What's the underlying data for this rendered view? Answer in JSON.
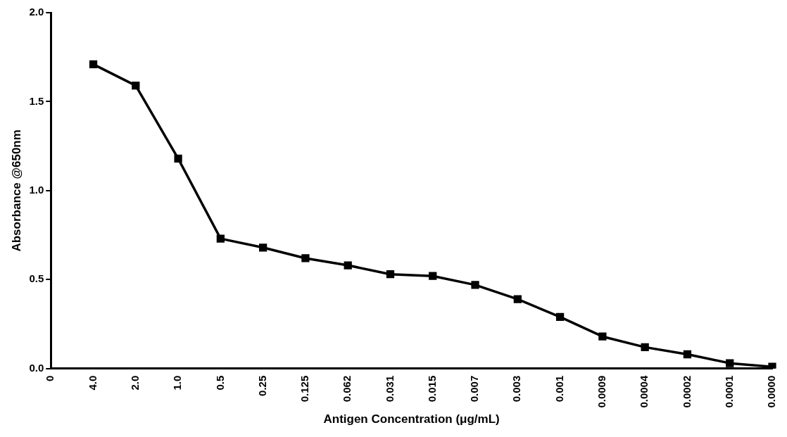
{
  "chart_data": {
    "type": "line",
    "xlabel": "Antigen Concentration (μg/mL)",
    "ylabel": "Absorbance @650nm",
    "categories": [
      "0",
      "4.0",
      "2.0",
      "1.0",
      "0.5",
      "0.25",
      "0.125",
      "0.062",
      "0.031",
      "0.015",
      "0.007",
      "0.003",
      "0.001",
      "0.0009",
      "0.0004",
      "0.0002",
      "0.0001",
      "0.0000"
    ],
    "series": [
      {
        "color": "#000000",
        "values": [
          null,
          1.71,
          1.59,
          1.18,
          0.73,
          0.68,
          0.62,
          0.58,
          0.53,
          0.52,
          0.47,
          0.39,
          0.29,
          0.18,
          0.12,
          0.08,
          0.03,
          0.01
        ]
      }
    ],
    "ylim": [
      0,
      2
    ],
    "yticks": [
      {
        "value": 0,
        "label": "0.0"
      },
      {
        "value": 0.5,
        "label": "0.5"
      },
      {
        "value": 1,
        "label": "1.0"
      },
      {
        "value": 1.5,
        "label": "1.5"
      },
      {
        "value": 2,
        "label": "2.0"
      }
    ],
    "grid": false,
    "legend": false,
    "marker": "square",
    "line_style": "solid"
  }
}
